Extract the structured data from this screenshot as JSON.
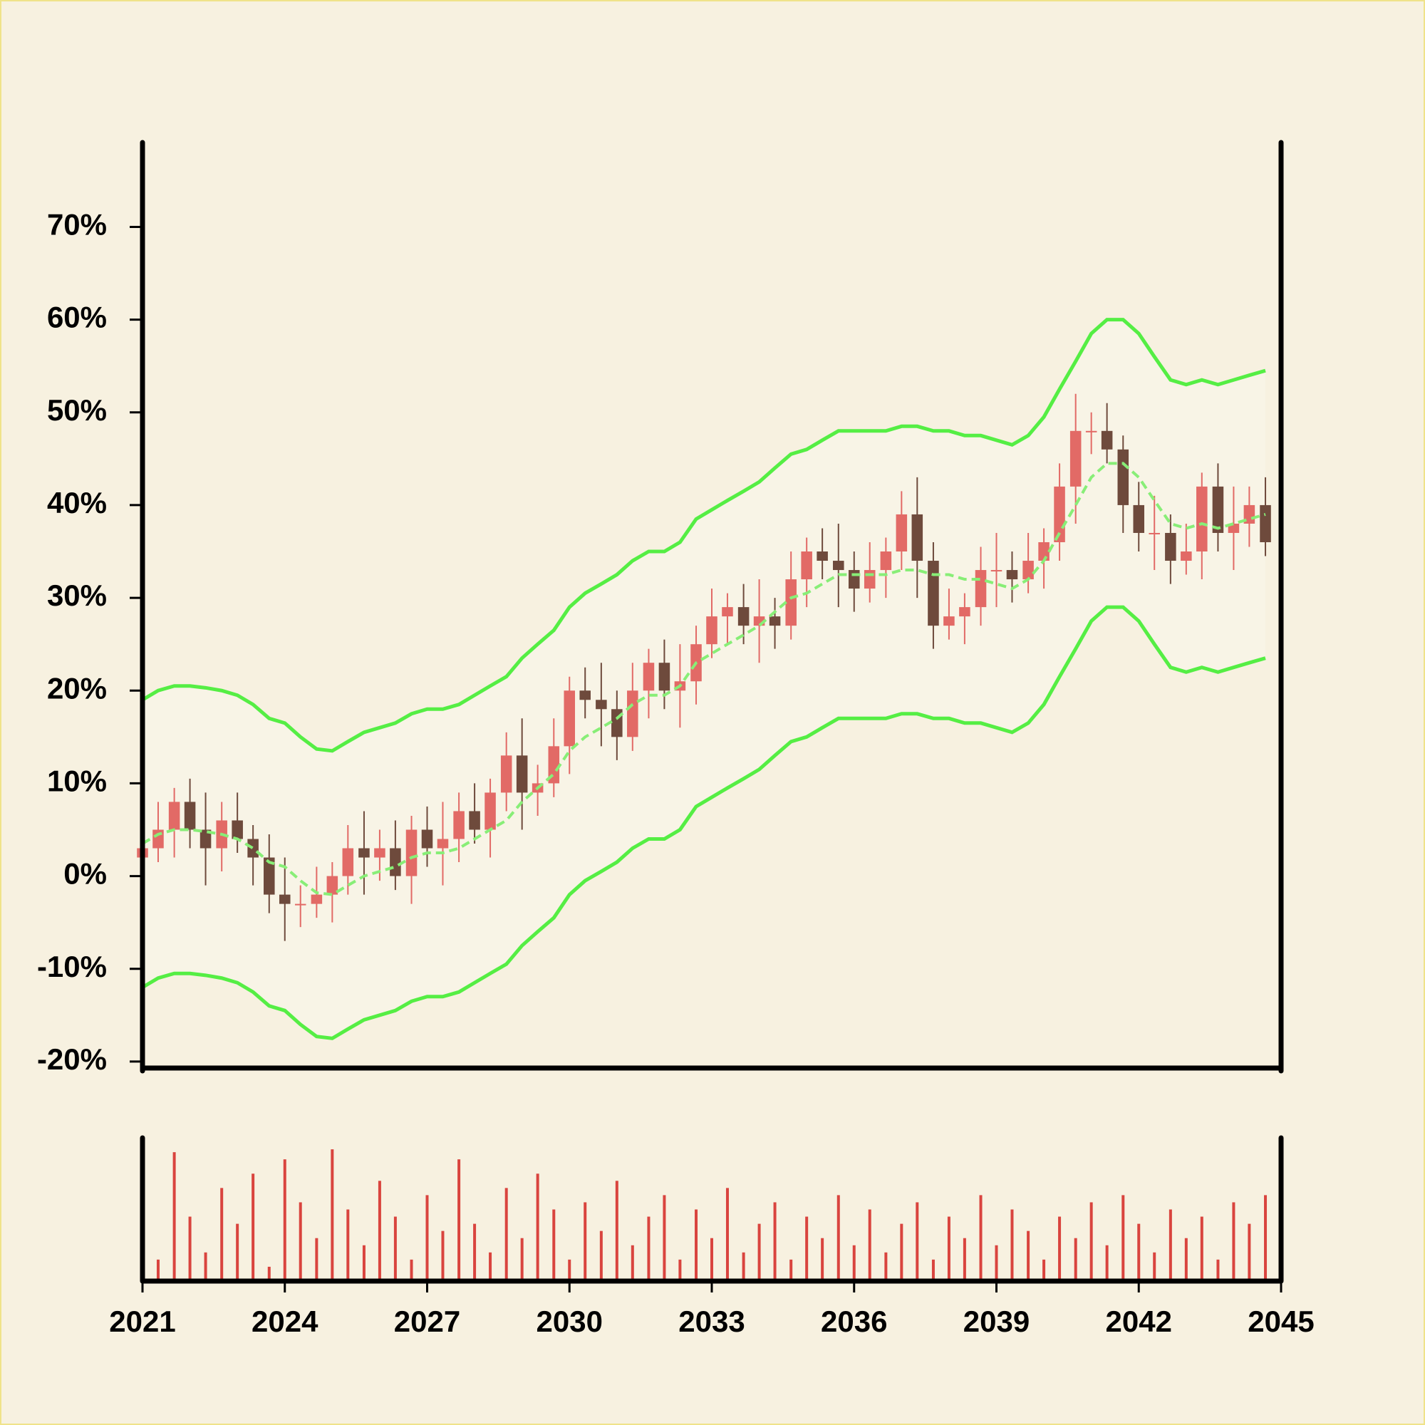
{
  "chart_data": {
    "type": "candlestick",
    "x": [
      2021,
      2021.33,
      2021.67,
      2022,
      2022.33,
      2022.67,
      2023,
      2023.33,
      2023.67,
      2024,
      2024.33,
      2024.67,
      2025,
      2025.33,
      2025.67,
      2026,
      2026.33,
      2026.67,
      2027,
      2027.33,
      2027.67,
      2028,
      2028.33,
      2028.67,
      2029,
      2029.33,
      2029.67,
      2030,
      2030.33,
      2030.67,
      2031,
      2031.33,
      2031.67,
      2032,
      2032.33,
      2032.67,
      2033,
      2033.33,
      2033.67,
      2034,
      2034.33,
      2034.67,
      2035,
      2035.33,
      2035.67,
      2036,
      2036.33,
      2036.67,
      2037,
      2037.33,
      2037.67,
      2038,
      2038.33,
      2038.67,
      2039,
      2039.33,
      2039.67,
      2040,
      2040.33,
      2040.67,
      2041,
      2041.33,
      2041.67,
      2042,
      2042.33,
      2042.67,
      2043,
      2043.33,
      2043.67,
      2044,
      2044.33,
      2044.67
    ],
    "open": [
      2,
      3,
      5,
      8,
      5,
      3,
      6,
      4,
      2,
      -2,
      -3,
      -3,
      -2,
      0,
      3,
      2,
      3,
      0,
      5,
      3,
      4,
      7,
      5,
      9,
      13,
      9,
      10,
      14,
      20,
      19,
      18,
      15,
      20,
      23,
      20,
      21,
      25,
      28,
      29,
      27,
      28,
      27,
      32,
      35,
      34,
      33,
      31,
      33,
      35,
      39,
      34,
      27,
      28,
      29,
      33,
      33,
      32,
      34,
      36,
      42,
      48,
      48,
      46,
      40,
      37,
      37,
      34,
      35,
      42,
      37,
      38,
      40
    ],
    "high": [
      5,
      8,
      9.5,
      10.5,
      9,
      8,
      9,
      5.5,
      4.5,
      2,
      -1,
      1,
      1.5,
      5.5,
      7,
      5,
      6,
      6.5,
      7.5,
      8,
      9,
      10,
      10.5,
      15.5,
      17,
      12,
      17,
      21.5,
      22.5,
      23,
      20,
      23,
      24.5,
      25.5,
      25,
      27,
      31,
      30.5,
      31.5,
      32,
      30,
      35,
      36.5,
      37.5,
      38,
      35,
      36,
      36.5,
      41.5,
      43,
      36,
      31,
      30.5,
      35.5,
      37,
      35,
      37,
      37.5,
      44.5,
      52,
      50,
      51,
      47.5,
      42.5,
      41,
      39,
      38,
      43.5,
      44.5,
      42,
      42,
      43
    ],
    "low": [
      -0.5,
      1.5,
      2,
      3,
      -1,
      0.5,
      2.5,
      -1,
      -4,
      -7,
      -5.5,
      -4.5,
      -5,
      -2,
      -2,
      -0.5,
      -1.5,
      -3,
      1,
      -1,
      1.5,
      3.5,
      2,
      7,
      5,
      6.5,
      8.5,
      11,
      17,
      14,
      12.5,
      13.5,
      17,
      18,
      16,
      18.5,
      23.5,
      25,
      25,
      23,
      24.5,
      25.5,
      29,
      32,
      29,
      28.5,
      29.5,
      30,
      33,
      30,
      24.5,
      25.5,
      25,
      27,
      29,
      29.5,
      30.5,
      31,
      34,
      38,
      45.5,
      44.5,
      37,
      35,
      33,
      31.5,
      32.5,
      32,
      35,
      33,
      35.5,
      34.5
    ],
    "close": [
      3,
      5,
      8,
      5,
      3,
      6,
      4,
      2,
      -2,
      -3,
      -3,
      -2,
      0,
      3,
      2,
      3,
      0,
      5,
      3,
      4,
      7,
      5,
      9,
      13,
      9,
      10,
      14,
      20,
      19,
      18,
      15,
      20,
      23,
      20,
      21,
      25,
      28,
      29,
      27,
      28,
      27,
      32,
      35,
      34,
      33,
      31,
      33,
      35,
      39,
      34,
      27,
      28,
      29,
      33,
      33,
      32,
      34,
      36,
      42,
      48,
      48,
      46,
      40,
      37,
      37,
      34,
      35,
      42,
      37,
      38,
      40,
      36
    ],
    "up_color": "#e26a66",
    "down_color": "#6e4a3c",
    "bands": {
      "color": "#55ee44",
      "middle_color": "#88ee77",
      "fill": "#f8f4e6",
      "upper": [
        19,
        20,
        20.5,
        20.5,
        20.3,
        20,
        19.5,
        18.5,
        17,
        16.5,
        15,
        13.7,
        13.5,
        14.5,
        15.5,
        16,
        16.5,
        17.5,
        18,
        18,
        18.5,
        19.5,
        20.5,
        21.5,
        23.5,
        25,
        26.5,
        29,
        30.5,
        31.5,
        32.5,
        34,
        35,
        35,
        36,
        38.5,
        39.5,
        40.5,
        41.5,
        42.5,
        44,
        45.5,
        46,
        47,
        48,
        48,
        48,
        48,
        48.5,
        48.5,
        48,
        48,
        47.5,
        47.5,
        47,
        46.5,
        47.5,
        49.5,
        52.5,
        55.5,
        58.5,
        60,
        60,
        58.5,
        56,
        53.5,
        53,
        53.5,
        53,
        53.5,
        54,
        54.5
      ],
      "middle": [
        3.5,
        4.5,
        5,
        5,
        4.8,
        4.5,
        4,
        3,
        1.5,
        1,
        -0.5,
        -1.8,
        -2,
        -1,
        0,
        0.5,
        1,
        2,
        2.5,
        2.5,
        3,
        4,
        5,
        6,
        8,
        9.5,
        11,
        13.5,
        15,
        16,
        17,
        18.5,
        19.5,
        19.5,
        20.5,
        23,
        24,
        25,
        26,
        27,
        28.5,
        30,
        30.5,
        31.5,
        32.5,
        32.5,
        32.5,
        32.5,
        33,
        33,
        32.5,
        32.5,
        32,
        32,
        31.5,
        31,
        32,
        34,
        37,
        40,
        43,
        44.5,
        44.5,
        43,
        40.5,
        38,
        37.5,
        38,
        37.5,
        38,
        38.5,
        39
      ],
      "lower": [
        -12,
        -11,
        -10.5,
        -10.5,
        -10.7,
        -11,
        -11.5,
        -12.5,
        -14,
        -14.5,
        -16,
        -17.3,
        -17.5,
        -16.5,
        -15.5,
        -15,
        -14.5,
        -13.5,
        -13,
        -13,
        -12.5,
        -11.5,
        -10.5,
        -9.5,
        -7.5,
        -6,
        -4.5,
        -2,
        -0.5,
        0.5,
        1.5,
        3,
        4,
        4,
        5,
        7.5,
        8.5,
        9.5,
        10.5,
        11.5,
        13,
        14.5,
        15,
        16,
        17,
        17,
        17,
        17,
        17.5,
        17.5,
        17,
        17,
        16.5,
        16.5,
        16,
        15.5,
        16.5,
        18.5,
        21.5,
        24.5,
        27.5,
        29,
        29,
        27.5,
        25,
        22.5,
        22,
        22.5,
        22,
        22.5,
        23,
        23.5
      ]
    },
    "volume": [
      80,
      15,
      90,
      45,
      20,
      65,
      40,
      75,
      10,
      85,
      55,
      30,
      92,
      50,
      25,
      70,
      45,
      15,
      60,
      35,
      85,
      40,
      20,
      65,
      30,
      75,
      50,
      15,
      55,
      35,
      70,
      25,
      45,
      60,
      15,
      50,
      30,
      65,
      20,
      40,
      55,
      15,
      45,
      30,
      60,
      25,
      50,
      20,
      40,
      55,
      15,
      45,
      30,
      60,
      25,
      50,
      35,
      15,
      45,
      30,
      55,
      25,
      60,
      40,
      20,
      50,
      30,
      45,
      15,
      55,
      40,
      60
    ],
    "volume_color": "#d9443e",
    "volume_ylim": [
      0,
      100
    ],
    "xlim": [
      2021,
      2045
    ],
    "xticks": [
      2021,
      2024,
      2027,
      2030,
      2033,
      2036,
      2039,
      2042,
      2045
    ],
    "ylim": [
      -20.7,
      79.1
    ],
    "yticks": [
      {
        "value": -20,
        "label": "-20%"
      },
      {
        "value": -10,
        "label": "-10%"
      },
      {
        "value": 0,
        "label": "0%"
      },
      {
        "value": 10,
        "label": "10%"
      },
      {
        "value": 20,
        "label": "20%"
      },
      {
        "value": 30,
        "label": "30%"
      },
      {
        "value": 40,
        "label": "40%"
      },
      {
        "value": 50,
        "label": "50%"
      },
      {
        "value": 60,
        "label": "60%"
      },
      {
        "value": 70,
        "label": "70%"
      }
    ]
  }
}
